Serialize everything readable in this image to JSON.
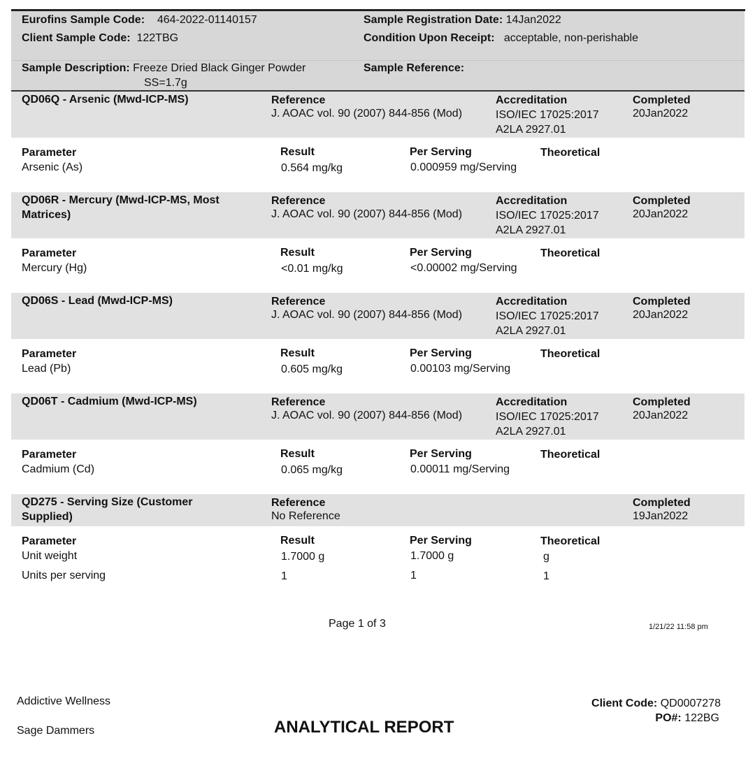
{
  "header": {
    "eurofins_sample_code_label": "Eurofins Sample Code:",
    "eurofins_sample_code": "464-2022-01140157",
    "client_sample_code_label": "Client Sample Code:",
    "client_sample_code": "122TBG",
    "registration_date_label": "Sample Registration Date:",
    "registration_date": "14Jan2022",
    "condition_label": "Condition Upon Receipt:",
    "condition": "acceptable, non-perishable",
    "description_label": "Sample Description:",
    "description_line1": "Freeze Dried Black Ginger Powder",
    "description_line2": "SS=1.7g",
    "reference_label": "Sample Reference:"
  },
  "labels": {
    "reference": "Reference",
    "accreditation": "Accreditation",
    "completed": "Completed",
    "parameter": "Parameter",
    "result": "Result",
    "per_serving": "Per Serving",
    "theoretical": "Theoretical"
  },
  "tests": [
    {
      "title1": "QD06Q - Arsenic (Mwd-ICP-MS)",
      "title2": "",
      "reference": "J. AOAC vol. 90 (2007) 844-856 (Mod)",
      "accreditation1": "ISO/IEC 17025:2017",
      "accreditation2": "A2LA 2927.01",
      "completed": "20Jan2022",
      "rows": [
        {
          "parameter": "Arsenic (As)",
          "result": "0.564 mg/kg",
          "per_serving": "0.000959 mg/Serving",
          "theoretical": ""
        }
      ]
    },
    {
      "title1": "QD06R - Mercury (Mwd-ICP-MS, Most",
      "title2": "Matrices)",
      "reference": "J. AOAC vol. 90 (2007) 844-856 (Mod)",
      "accreditation1": "ISO/IEC 17025:2017",
      "accreditation2": "A2LA 2927.01",
      "completed": "20Jan2022",
      "rows": [
        {
          "parameter": "Mercury (Hg)",
          "result": "<0.01 mg/kg",
          "per_serving": "<0.00002 mg/Serving",
          "theoretical": ""
        }
      ]
    },
    {
      "title1": "QD06S - Lead (Mwd-ICP-MS)",
      "title2": "",
      "reference": "J. AOAC vol. 90 (2007) 844-856 (Mod)",
      "accreditation1": "ISO/IEC 17025:2017",
      "accreditation2": "A2LA 2927.01",
      "completed": "20Jan2022",
      "rows": [
        {
          "parameter": "Lead (Pb)",
          "result": "0.605 mg/kg",
          "per_serving": "0.00103 mg/Serving",
          "theoretical": ""
        }
      ]
    },
    {
      "title1": "QD06T - Cadmium (Mwd-ICP-MS)",
      "title2": "",
      "reference": "J. AOAC vol. 90 (2007) 844-856 (Mod)",
      "accreditation1": "ISO/IEC 17025:2017",
      "accreditation2": "A2LA 2927.01",
      "completed": "20Jan2022",
      "rows": [
        {
          "parameter": "Cadmium (Cd)",
          "result": "0.065 mg/kg",
          "per_serving": "0.00011 mg/Serving",
          "theoretical": ""
        }
      ]
    },
    {
      "title1": "QD275 - Serving Size (Customer",
      "title2": "Supplied)",
      "reference": "No Reference",
      "accreditation1": "",
      "accreditation2": "",
      "completed": "19Jan2022",
      "rows": [
        {
          "parameter": "Unit weight",
          "result": "1.7000 g",
          "per_serving": "1.7000 g",
          "theoretical": "g"
        },
        {
          "parameter": "Units per serving",
          "result": "1",
          "per_serving": "1",
          "theoretical": "1"
        }
      ]
    }
  ],
  "footer": {
    "page": "Page 1 of 3",
    "timestamp": "1/21/22  11:58 pm",
    "client_name": "Addictive Wellness",
    "contact": "Sage Dammers",
    "report_title": "ANALYTICAL REPORT",
    "client_code_label": "Client Code:",
    "client_code": "QD0007278",
    "po_label": "PO#:",
    "po": "122BG"
  }
}
